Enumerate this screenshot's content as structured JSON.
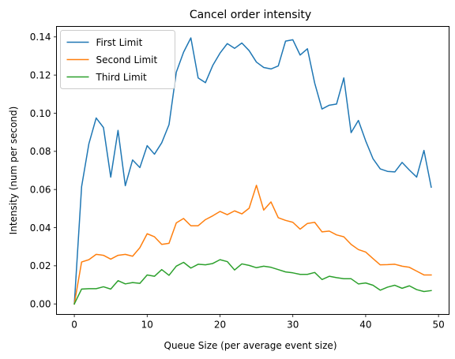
{
  "chart_data": {
    "type": "line",
    "title": "Cancel order intensity",
    "xlabel": "Queue Size (per average event size)",
    "ylabel": "Intensity (num per second)",
    "xlim": [
      -2.45,
      51.45
    ],
    "ylim": [
      -0.0055,
      0.1455
    ],
    "xticks": [
      0,
      10,
      20,
      30,
      40,
      50
    ],
    "yticks": [
      0.0,
      0.02,
      0.04,
      0.06,
      0.08,
      0.1,
      0.12,
      0.14
    ],
    "ytick_labels": [
      "0.00",
      "0.02",
      "0.04",
      "0.06",
      "0.08",
      "0.10",
      "0.12",
      "0.14"
    ],
    "grid": false,
    "legend_position": "upper-left",
    "x": [
      0,
      1,
      2,
      3,
      4,
      5,
      6,
      7,
      8,
      9,
      10,
      11,
      12,
      13,
      14,
      15,
      16,
      17,
      18,
      19,
      20,
      21,
      22,
      23,
      24,
      25,
      26,
      27,
      28,
      29,
      30,
      31,
      32,
      33,
      34,
      35,
      36,
      37,
      38,
      39,
      40,
      41,
      42,
      43,
      44,
      45,
      46,
      47,
      48,
      49
    ],
    "series": [
      {
        "name": "First Limit",
        "color": "#1f77b4",
        "values": [
          0.0,
          0.0615,
          0.084,
          0.0975,
          0.0925,
          0.0665,
          0.091,
          0.062,
          0.0755,
          0.0715,
          0.083,
          0.0785,
          0.0845,
          0.094,
          0.1215,
          0.132,
          0.1395,
          0.1185,
          0.116,
          0.125,
          0.1315,
          0.1365,
          0.134,
          0.1368,
          0.1328,
          0.1268,
          0.124,
          0.1232,
          0.1248,
          0.1378,
          0.1385,
          0.1305,
          0.1338,
          0.1158,
          0.1022,
          0.1042,
          0.1048,
          0.1185,
          0.0898,
          0.0962,
          0.0855,
          0.0762,
          0.0708,
          0.0695,
          0.0692,
          0.0742,
          0.0702,
          0.0665,
          0.0805,
          0.0612
        ]
      },
      {
        "name": "Second Limit",
        "color": "#ff7f0e",
        "values": [
          0.0,
          0.022,
          0.0232,
          0.026,
          0.0255,
          0.0235,
          0.0255,
          0.026,
          0.025,
          0.0295,
          0.0368,
          0.0352,
          0.0312,
          0.0318,
          0.0425,
          0.0448,
          0.041,
          0.041,
          0.0442,
          0.0462,
          0.0485,
          0.0468,
          0.0488,
          0.0472,
          0.0502,
          0.0622,
          0.0492,
          0.0535,
          0.0452,
          0.0438,
          0.0428,
          0.0392,
          0.0422,
          0.0428,
          0.0378,
          0.0382,
          0.0362,
          0.0352,
          0.0312,
          0.0285,
          0.0272,
          0.0238,
          0.0205,
          0.0206,
          0.0208,
          0.0198,
          0.0192,
          0.0172,
          0.0152,
          0.0152
        ]
      },
      {
        "name": "Third Limit",
        "color": "#2ca02c",
        "values": [
          0.0,
          0.0078,
          0.008,
          0.008,
          0.009,
          0.0078,
          0.0122,
          0.0105,
          0.0112,
          0.0108,
          0.0152,
          0.0145,
          0.018,
          0.015,
          0.0198,
          0.0218,
          0.0188,
          0.0208,
          0.0205,
          0.0212,
          0.0232,
          0.0222,
          0.0178,
          0.021,
          0.0202,
          0.019,
          0.0198,
          0.0192,
          0.018,
          0.0168,
          0.0163,
          0.0155,
          0.0155,
          0.0165,
          0.0128,
          0.0145,
          0.0138,
          0.0132,
          0.0132,
          0.0105,
          0.011,
          0.0098,
          0.0072,
          0.0088,
          0.0098,
          0.0082,
          0.0095,
          0.0075,
          0.0065,
          0.007
        ]
      }
    ]
  }
}
